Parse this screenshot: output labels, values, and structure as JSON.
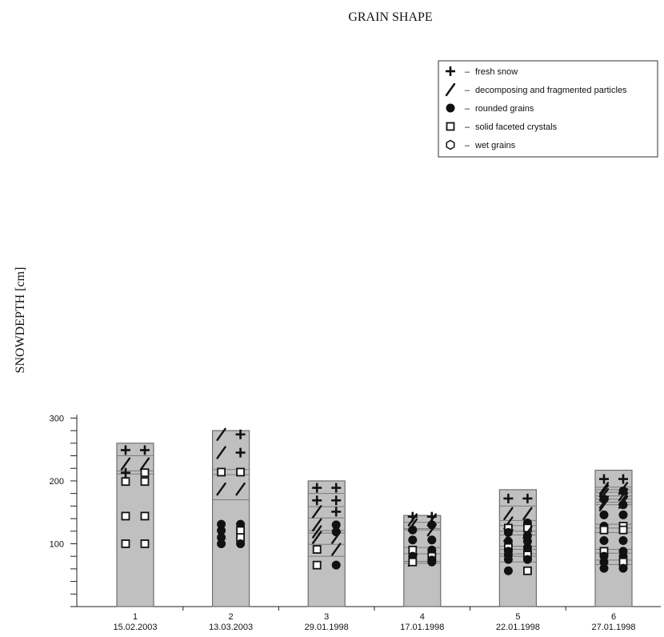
{
  "chart_data": {
    "type": "bar",
    "title": "GRAIN SHAPE",
    "ylabel": "SNOWDEPTH [cm]",
    "xlabel": "",
    "ylim": [
      0,
      300
    ],
    "yticks": [
      100,
      200,
      300
    ],
    "categories": [
      {
        "id": "1",
        "date": "15.02.2003"
      },
      {
        "id": "2",
        "date": "13.03.2003"
      },
      {
        "id": "3",
        "date": "29.01.1998"
      },
      {
        "id": "4",
        "date": "17.01.1998"
      },
      {
        "id": "5",
        "date": "22.01.1998"
      },
      {
        "id": "6",
        "date": "27.01.1998"
      }
    ],
    "legend": {
      "placement": "top-right",
      "items": [
        {
          "symbol": "plus",
          "label": "fresh snow"
        },
        {
          "symbol": "slash",
          "label": "decomposing and fragmented particles"
        },
        {
          "symbol": "dot",
          "label": "rounded grains"
        },
        {
          "symbol": "square",
          "label": "solid faceted crystals"
        },
        {
          "symbol": "hexagon",
          "label": "wet grains"
        }
      ]
    },
    "dash": "–",
    "colors": {
      "bar_fill": "#c0c0c0",
      "bar_stroke": "#6e6e6e",
      "line": "#7a7a7a",
      "symbol": "#111111"
    },
    "profiles": [
      {
        "depth": 260,
        "boundaries": [
          240,
          216,
          211
        ],
        "symbols": [
          [
            249,
            "plus",
            "plus"
          ],
          [
            227,
            "slash",
            "slash"
          ],
          [
            213,
            "plus",
            "square"
          ],
          [
            199,
            "square",
            "square"
          ],
          [
            144,
            "square",
            "square"
          ],
          [
            100,
            "square",
            "square"
          ]
        ]
      },
      {
        "depth": 280,
        "boundaries": [
          218,
          210,
          170
        ],
        "symbols": [
          [
            274,
            "slash",
            "plus"
          ],
          [
            245,
            "slash",
            "plus"
          ],
          [
            214,
            "square",
            "square"
          ],
          [
            187,
            "slash",
            "slash"
          ],
          [
            131,
            "dot",
            "dot"
          ],
          [
            121,
            "dot",
            "square"
          ],
          [
            110,
            "dot",
            "square"
          ],
          [
            100,
            "dot",
            "dot"
          ]
        ]
      },
      {
        "depth": 200,
        "boundaries": [
          180,
          159,
          141,
          121,
          117,
          99,
          80
        ],
        "symbols": [
          [
            189,
            "plus",
            "plus"
          ],
          [
            169,
            "plus",
            "plus"
          ],
          [
            151,
            "slash",
            "plus"
          ],
          [
            130,
            "slash",
            "dot"
          ],
          [
            119,
            "slash",
            "dot"
          ],
          [
            110,
            "slash",
            "slash"
          ],
          [
            91,
            "square",
            "slash"
          ],
          [
            66,
            "square",
            "dot"
          ]
        ]
      },
      {
        "depth": 145,
        "boundaries": [
          134,
          124,
          122,
          94,
          84,
          72,
          69
        ],
        "symbols": [
          [
            143,
            "plus",
            "plus"
          ],
          [
            138,
            "slash",
            "slash"
          ],
          [
            130,
            "slash",
            "dot"
          ],
          [
            122,
            "dot",
            "slash"
          ],
          [
            106,
            "dot",
            "dot"
          ],
          [
            90,
            "square",
            "dot"
          ],
          [
            80,
            "dot",
            "square"
          ],
          [
            74,
            "slash",
            "dot"
          ],
          [
            71,
            "square",
            "dot"
          ]
        ]
      },
      {
        "depth": 186,
        "boundaries": [
          160,
          137,
          129,
          120,
          114,
          96,
          91,
          84,
          80,
          71
        ],
        "symbols": [
          [
            172,
            "plus",
            "plus"
          ],
          [
            148,
            "slash",
            "slash"
          ],
          [
            133,
            "slash",
            "dot"
          ],
          [
            125,
            "square",
            "square"
          ],
          [
            118,
            "dot",
            "slash"
          ],
          [
            113,
            "slash",
            "dot"
          ],
          [
            104,
            "dot",
            "dot"
          ],
          [
            94,
            "square",
            "dot"
          ],
          [
            88,
            "dot",
            "dot"
          ],
          [
            82,
            "dot",
            "square"
          ],
          [
            75,
            "dot",
            "dot"
          ],
          [
            57,
            "dot",
            "square"
          ]
        ]
      },
      {
        "depth": 217,
        "boundaries": [
          190,
          186,
          182,
          176,
          171,
          166,
          162,
          131,
          125,
          118,
          91,
          85,
          74,
          67
        ],
        "symbols": [
          [
            203,
            "plus",
            "plus"
          ],
          [
            188,
            "slash",
            "slash"
          ],
          [
            184,
            "slash",
            "dot"
          ],
          [
            178,
            "slash",
            "slash"
          ],
          [
            171,
            "dot",
            "slash"
          ],
          [
            166,
            "slash",
            "slash"
          ],
          [
            162,
            "slash",
            "dot"
          ],
          [
            146,
            "dot",
            "dot"
          ],
          [
            128,
            "dot",
            "square"
          ],
          [
            122,
            "square",
            "square"
          ],
          [
            105,
            "dot",
            "dot"
          ],
          [
            88,
            "square",
            "dot"
          ],
          [
            80,
            "dot",
            "dot"
          ],
          [
            71,
            "dot",
            "square"
          ],
          [
            61,
            "dot",
            "dot"
          ]
        ]
      }
    ]
  }
}
